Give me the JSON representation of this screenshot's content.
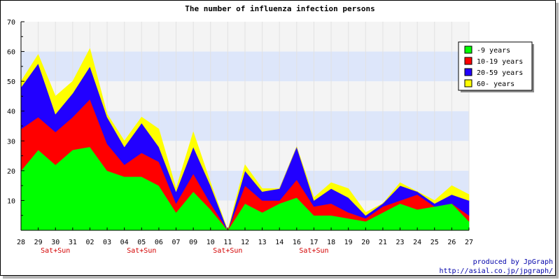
{
  "chart_data": {
    "type": "area",
    "title": "The number of influenza infection persons",
    "stacked": true,
    "categories": [
      "28",
      "29",
      "30",
      "31",
      "02",
      "03",
      "04",
      "05",
      "06",
      "07",
      "09",
      "10",
      "11",
      "12",
      "13",
      "14",
      "16",
      "17",
      "18",
      "19",
      "20",
      "21",
      "23",
      "24",
      "25",
      "26",
      "27"
    ],
    "weekend_labels": [
      {
        "category": "30",
        "label": "Sat+Sun"
      },
      {
        "category": "05",
        "label": "Sat+Sun"
      },
      {
        "category": "11",
        "label": "Sat+Sun"
      },
      {
        "category": "17",
        "label": "Sat+Sun"
      }
    ],
    "ylim": [
      0,
      70
    ],
    "yticks": [
      10,
      20,
      30,
      40,
      50,
      60,
      70
    ],
    "band_colors": [
      "#f4f4f4",
      "#dde6fa"
    ],
    "legend_position": "top-right",
    "series": [
      {
        "name": "-9 years",
        "color": "#00ff00",
        "values": [
          20,
          27,
          22,
          27,
          28,
          20,
          18,
          18,
          15,
          6,
          13,
          7,
          0,
          9,
          6,
          9,
          11,
          5,
          5,
          4,
          3,
          6,
          9,
          7,
          8,
          9,
          3
        ]
      },
      {
        "name": "10-19 years",
        "color": "#ff0000",
        "values": [
          14,
          11,
          11,
          11,
          16,
          9,
          4,
          8,
          8,
          3,
          6,
          2,
          0,
          6,
          4,
          1,
          6,
          3,
          4,
          2,
          1,
          2,
          1,
          5,
          0,
          0,
          2
        ]
      },
      {
        "name": "20-59 years",
        "color": "#2200ff",
        "values": [
          14,
          18,
          6,
          8,
          11,
          9,
          6,
          10,
          5,
          4,
          9,
          6,
          0,
          5,
          3,
          4,
          11,
          2,
          5,
          5,
          1,
          1,
          5,
          1,
          1,
          3,
          5
        ]
      },
      {
        "name": "60- years",
        "color": "#ffff00",
        "values": [
          2,
          3,
          6,
          4,
          6,
          1,
          2,
          2,
          6,
          1,
          5,
          1,
          0,
          2,
          1,
          0,
          0,
          1,
          2,
          3,
          1,
          0,
          1,
          0,
          1,
          3,
          2
        ]
      }
    ],
    "credits": [
      "produced by JpGraph",
      "http://asial.co.jp/jpgraph/"
    ]
  }
}
